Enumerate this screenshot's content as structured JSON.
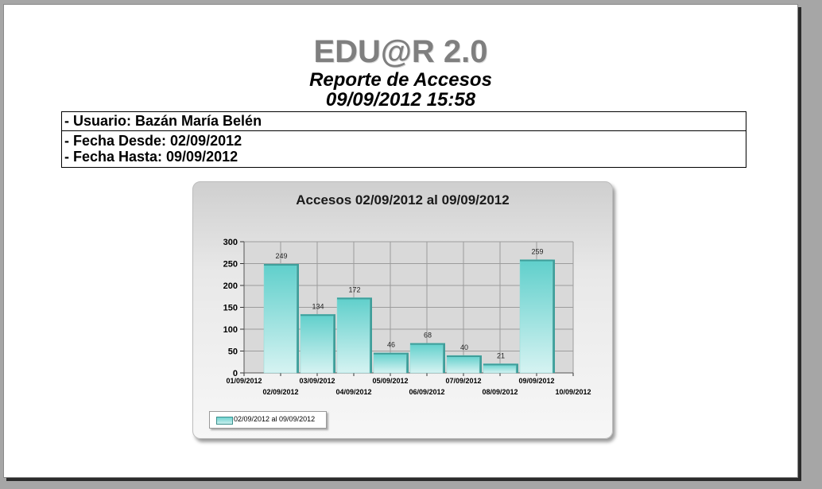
{
  "header": {
    "app_title": "EDU@R 2.0",
    "report_title": "Reporte de Accesos",
    "report_datetime": "09/09/2012 15:58"
  },
  "info": {
    "usuario": "- Usuario: Bazán María Belén",
    "fecha_desde": "- Fecha Desde: 02/09/2012",
    "fecha_hasta": "- Fecha Hasta: 09/09/2012"
  },
  "colors": {
    "bar_top": "#5fcfcb",
    "bar_bottom": "#d6f3f2",
    "bar_side": "#3f9e9a",
    "grid": "#9c9c9c",
    "plot_bg": "#d9d9d9"
  },
  "chart_data": {
    "type": "bar",
    "title": "Accesos 02/09/2012 al 09/09/2012",
    "x_ticks": [
      "01/09/2012",
      "02/09/2012",
      "03/09/2012",
      "04/09/2012",
      "05/09/2012",
      "06/09/2012",
      "07/09/2012",
      "08/09/2012",
      "09/09/2012",
      "10/09/2012"
    ],
    "categories": [
      "02/09/2012",
      "03/09/2012",
      "04/09/2012",
      "05/09/2012",
      "06/09/2012",
      "07/09/2012",
      "08/09/2012",
      "09/09/2012"
    ],
    "series": [
      {
        "name": "02/09/2012 al 09/09/2012",
        "values": [
          249,
          134,
          172,
          46,
          68,
          40,
          21,
          259
        ]
      }
    ],
    "y_ticks": [
      0,
      50,
      100,
      150,
      200,
      250,
      300
    ],
    "ylim": [
      0,
      300
    ],
    "xlabel": "",
    "ylabel": "",
    "grid": true,
    "legend_position": "bottom-left"
  }
}
